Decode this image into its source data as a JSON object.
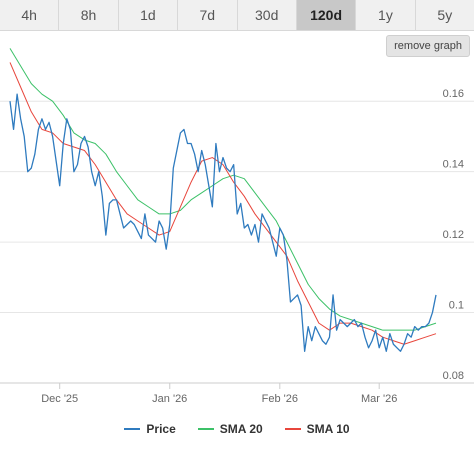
{
  "timeframes": {
    "items": [
      "4h",
      "8h",
      "1d",
      "7d",
      "30d",
      "120d",
      "1y",
      "5y"
    ],
    "active": "120d"
  },
  "remove_graph_label": "remove graph",
  "colors": {
    "price": "#2f7bbf",
    "sma20": "#3cc168",
    "sma10": "#e8463c",
    "grid": "#e6e6e6",
    "axis": "#cccccc"
  },
  "chart_data": {
    "type": "line",
    "x_axis": {
      "type": "datetime",
      "min": "2025-11-17",
      "max": "2026-03-17",
      "ticks": [
        "2025-12-01",
        "2026-01-01",
        "2026-02-01",
        "2026-03-01"
      ],
      "tick_labels": [
        "Dec '25",
        "Jan '26",
        "Feb '26",
        "Mar '26"
      ]
    },
    "y_axis": {
      "min": 0.08,
      "max": 0.17,
      "ticks": [
        0.08,
        0.1,
        0.12,
        0.14,
        0.16
      ],
      "tick_labels": [
        "0.08",
        "0.1",
        "0.12",
        "0.14",
        "0.16"
      ],
      "position": "right"
    },
    "grid": true,
    "legend": "bottom",
    "series": [
      {
        "name": "Price",
        "points": [
          [
            "2025-11-17",
            0.16
          ],
          [
            "2025-11-18",
            0.152
          ],
          [
            "2025-11-19",
            0.162
          ],
          [
            "2025-11-20",
            0.155
          ],
          [
            "2025-11-21",
            0.15
          ],
          [
            "2025-11-22",
            0.14
          ],
          [
            "2025-11-23",
            0.141
          ],
          [
            "2025-11-24",
            0.145
          ],
          [
            "2025-11-25",
            0.152
          ],
          [
            "2025-11-26",
            0.155
          ],
          [
            "2025-11-27",
            0.152
          ],
          [
            "2025-11-28",
            0.154
          ],
          [
            "2025-11-29",
            0.15
          ],
          [
            "2025-11-30",
            0.143
          ],
          [
            "2025-12-01",
            0.136
          ],
          [
            "2025-12-02",
            0.148
          ],
          [
            "2025-12-03",
            0.155
          ],
          [
            "2025-12-04",
            0.152
          ],
          [
            "2025-12-05",
            0.14
          ],
          [
            "2025-12-06",
            0.142
          ],
          [
            "2025-12-07",
            0.148
          ],
          [
            "2025-12-08",
            0.15
          ],
          [
            "2025-12-09",
            0.147
          ],
          [
            "2025-12-10",
            0.14
          ],
          [
            "2025-12-11",
            0.136
          ],
          [
            "2025-12-12",
            0.14
          ],
          [
            "2025-12-13",
            0.133
          ],
          [
            "2025-12-14",
            0.122
          ],
          [
            "2025-12-15",
            0.131
          ],
          [
            "2025-12-16",
            0.132
          ],
          [
            "2025-12-17",
            0.132
          ],
          [
            "2025-12-18",
            0.128
          ],
          [
            "2025-12-19",
            0.124
          ],
          [
            "2025-12-20",
            0.125
          ],
          [
            "2025-12-21",
            0.126
          ],
          [
            "2025-12-22",
            0.125
          ],
          [
            "2025-12-23",
            0.123
          ],
          [
            "2025-12-24",
            0.121
          ],
          [
            "2025-12-25",
            0.128
          ],
          [
            "2025-12-26",
            0.122
          ],
          [
            "2025-12-27",
            0.121
          ],
          [
            "2025-12-28",
            0.12
          ],
          [
            "2025-12-29",
            0.126
          ],
          [
            "2025-12-30",
            0.124
          ],
          [
            "2025-12-31",
            0.118
          ],
          [
            "2026-01-01",
            0.125
          ],
          [
            "2026-01-02",
            0.141
          ],
          [
            "2026-01-03",
            0.146
          ],
          [
            "2026-01-04",
            0.151
          ],
          [
            "2026-01-05",
            0.152
          ],
          [
            "2026-01-06",
            0.148
          ],
          [
            "2026-01-07",
            0.148
          ],
          [
            "2026-01-08",
            0.145
          ],
          [
            "2026-01-09",
            0.14
          ],
          [
            "2026-01-10",
            0.146
          ],
          [
            "2026-01-11",
            0.142
          ],
          [
            "2026-01-12",
            0.136
          ],
          [
            "2026-01-13",
            0.13
          ],
          [
            "2026-01-14",
            0.148
          ],
          [
            "2026-01-15",
            0.14
          ],
          [
            "2026-01-16",
            0.144
          ],
          [
            "2026-01-17",
            0.141
          ],
          [
            "2026-01-18",
            0.14
          ],
          [
            "2026-01-19",
            0.142
          ],
          [
            "2026-01-20",
            0.128
          ],
          [
            "2026-01-21",
            0.131
          ],
          [
            "2026-01-22",
            0.124
          ],
          [
            "2026-01-23",
            0.125
          ],
          [
            "2026-01-24",
            0.122
          ],
          [
            "2026-01-25",
            0.125
          ],
          [
            "2026-01-26",
            0.12
          ],
          [
            "2026-01-27",
            0.128
          ],
          [
            "2026-01-28",
            0.126
          ],
          [
            "2026-01-29",
            0.124
          ],
          [
            "2026-01-30",
            0.12
          ],
          [
            "2026-01-31",
            0.116
          ],
          [
            "2026-02-01",
            0.124
          ],
          [
            "2026-02-02",
            0.122
          ],
          [
            "2026-02-03",
            0.115
          ],
          [
            "2026-02-04",
            0.103
          ],
          [
            "2026-02-05",
            0.104
          ],
          [
            "2026-02-06",
            0.105
          ],
          [
            "2026-02-07",
            0.102
          ],
          [
            "2026-02-08",
            0.089
          ],
          [
            "2026-02-09",
            0.096
          ],
          [
            "2026-02-10",
            0.092
          ],
          [
            "2026-02-11",
            0.096
          ],
          [
            "2026-02-12",
            0.094
          ],
          [
            "2026-02-13",
            0.092
          ],
          [
            "2026-02-14",
            0.091
          ],
          [
            "2026-02-15",
            0.093
          ],
          [
            "2026-02-16",
            0.105
          ],
          [
            "2026-02-17",
            0.095
          ],
          [
            "2026-02-18",
            0.098
          ],
          [
            "2026-02-19",
            0.097
          ],
          [
            "2026-02-20",
            0.096
          ],
          [
            "2026-02-21",
            0.097
          ],
          [
            "2026-02-22",
            0.098
          ],
          [
            "2026-02-23",
            0.096
          ],
          [
            "2026-02-24",
            0.097
          ],
          [
            "2026-02-25",
            0.093
          ],
          [
            "2026-02-26",
            0.09
          ],
          [
            "2026-02-27",
            0.092
          ],
          [
            "2026-02-28",
            0.095
          ],
          [
            "2026-03-01",
            0.09
          ],
          [
            "2026-03-02",
            0.093
          ],
          [
            "2026-03-03",
            0.089
          ],
          [
            "2026-03-04",
            0.094
          ],
          [
            "2026-03-05",
            0.091
          ],
          [
            "2026-03-06",
            0.09
          ],
          [
            "2026-03-07",
            0.089
          ],
          [
            "2026-03-08",
            0.091
          ],
          [
            "2026-03-09",
            0.094
          ],
          [
            "2026-03-10",
            0.093
          ],
          [
            "2026-03-11",
            0.096
          ],
          [
            "2026-03-12",
            0.095
          ],
          [
            "2026-03-13",
            0.096
          ],
          [
            "2026-03-14",
            0.096
          ],
          [
            "2026-03-15",
            0.097
          ],
          [
            "2026-03-16",
            0.1
          ],
          [
            "2026-03-17",
            0.105
          ]
        ]
      },
      {
        "name": "SMA 20",
        "points": [
          [
            "2025-11-17",
            0.175
          ],
          [
            "2025-11-20",
            0.17
          ],
          [
            "2025-11-23",
            0.165
          ],
          [
            "2025-11-26",
            0.162
          ],
          [
            "2025-11-29",
            0.16
          ],
          [
            "2025-12-02",
            0.156
          ],
          [
            "2025-12-05",
            0.151
          ],
          [
            "2025-12-08",
            0.149
          ],
          [
            "2025-12-11",
            0.148
          ],
          [
            "2025-12-14",
            0.145
          ],
          [
            "2025-12-17",
            0.14
          ],
          [
            "2025-12-20",
            0.136
          ],
          [
            "2025-12-23",
            0.132
          ],
          [
            "2025-12-26",
            0.13
          ],
          [
            "2025-12-29",
            0.128
          ],
          [
            "2026-01-01",
            0.128
          ],
          [
            "2026-01-04",
            0.129
          ],
          [
            "2026-01-07",
            0.132
          ],
          [
            "2026-01-10",
            0.134
          ],
          [
            "2026-01-13",
            0.136
          ],
          [
            "2026-01-16",
            0.138
          ],
          [
            "2026-01-19",
            0.139
          ],
          [
            "2026-01-22",
            0.138
          ],
          [
            "2026-01-25",
            0.134
          ],
          [
            "2026-01-28",
            0.13
          ],
          [
            "2026-01-31",
            0.126
          ],
          [
            "2026-02-03",
            0.12
          ],
          [
            "2026-02-06",
            0.114
          ],
          [
            "2026-02-09",
            0.108
          ],
          [
            "2026-02-12",
            0.104
          ],
          [
            "2026-02-15",
            0.101
          ],
          [
            "2026-02-18",
            0.099
          ],
          [
            "2026-02-21",
            0.098
          ],
          [
            "2026-02-24",
            0.097
          ],
          [
            "2026-02-27",
            0.096
          ],
          [
            "2026-03-02",
            0.095
          ],
          [
            "2026-03-05",
            0.095
          ],
          [
            "2026-03-08",
            0.095
          ],
          [
            "2026-03-11",
            0.095
          ],
          [
            "2026-03-14",
            0.096
          ],
          [
            "2026-03-17",
            0.097
          ]
        ]
      },
      {
        "name": "SMA 10",
        "points": [
          [
            "2025-11-17",
            0.171
          ],
          [
            "2025-11-20",
            0.164
          ],
          [
            "2025-11-23",
            0.157
          ],
          [
            "2025-11-26",
            0.152
          ],
          [
            "2025-11-29",
            0.151
          ],
          [
            "2025-12-02",
            0.148
          ],
          [
            "2025-12-05",
            0.147
          ],
          [
            "2025-12-08",
            0.146
          ],
          [
            "2025-12-11",
            0.142
          ],
          [
            "2025-12-14",
            0.137
          ],
          [
            "2025-12-17",
            0.132
          ],
          [
            "2025-12-20",
            0.128
          ],
          [
            "2025-12-23",
            0.126
          ],
          [
            "2025-12-26",
            0.124
          ],
          [
            "2025-12-29",
            0.122
          ],
          [
            "2026-01-01",
            0.123
          ],
          [
            "2026-01-04",
            0.13
          ],
          [
            "2026-01-07",
            0.137
          ],
          [
            "2026-01-10",
            0.143
          ],
          [
            "2026-01-13",
            0.144
          ],
          [
            "2026-01-16",
            0.142
          ],
          [
            "2026-01-19",
            0.137
          ],
          [
            "2026-01-22",
            0.133
          ],
          [
            "2026-01-25",
            0.128
          ],
          [
            "2026-01-28",
            0.124
          ],
          [
            "2026-01-31",
            0.12
          ],
          [
            "2026-02-03",
            0.116
          ],
          [
            "2026-02-06",
            0.109
          ],
          [
            "2026-02-09",
            0.103
          ],
          [
            "2026-02-12",
            0.097
          ],
          [
            "2026-02-15",
            0.095
          ],
          [
            "2026-02-18",
            0.097
          ],
          [
            "2026-02-21",
            0.097
          ],
          [
            "2026-02-24",
            0.096
          ],
          [
            "2026-02-27",
            0.095
          ],
          [
            "2026-03-02",
            0.093
          ],
          [
            "2026-03-05",
            0.092
          ],
          [
            "2026-03-08",
            0.091
          ],
          [
            "2026-03-11",
            0.092
          ],
          [
            "2026-03-14",
            0.093
          ],
          [
            "2026-03-17",
            0.094
          ]
        ]
      }
    ]
  }
}
